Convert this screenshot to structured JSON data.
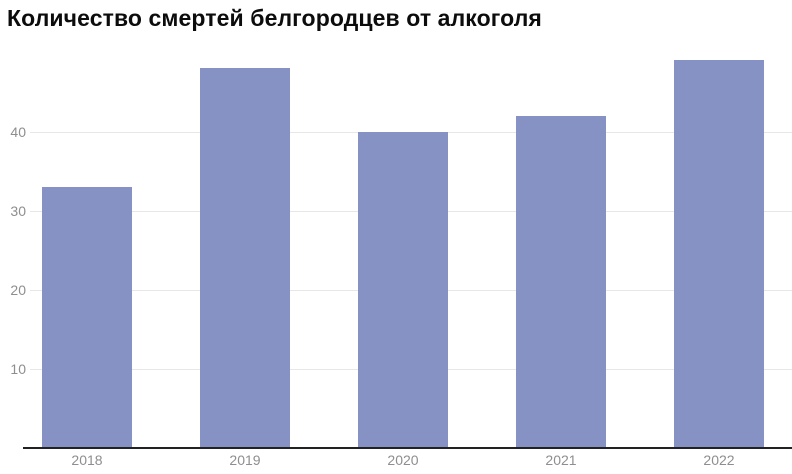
{
  "chart_data": {
    "type": "bar",
    "title": "Количество смертей белгородцев от алкоголя",
    "categories": [
      "2018",
      "2019",
      "2020",
      "2021",
      "2022"
    ],
    "values": [
      33,
      48,
      40,
      42,
      49
    ],
    "series": [
      {
        "name": "Количество смертей",
        "values": [
          33,
          48,
          40,
          42,
          49
        ]
      }
    ],
    "xlabel": "",
    "ylabel": "",
    "y_ticks": [
      10,
      20,
      30,
      40
    ],
    "ylim": [
      0,
      50
    ],
    "grid": "horizontal-on",
    "legend": "none",
    "colors": {
      "bar": "#8692c4",
      "gridline": "#e7e7e7",
      "axis_line": "#222222",
      "tick_label": "#8e8e8e",
      "title": "#0c0c0c",
      "background": "#ffffff"
    }
  }
}
